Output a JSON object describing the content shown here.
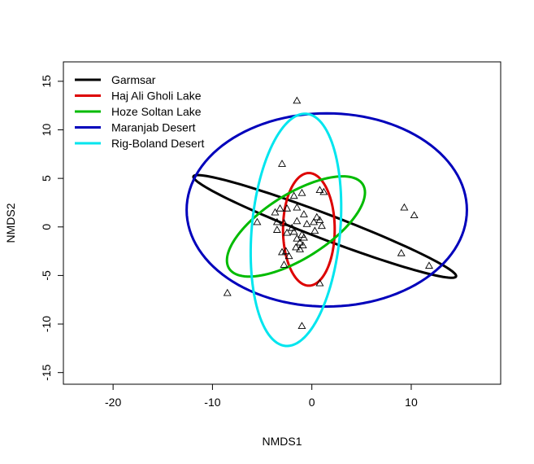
{
  "chart_data": {
    "type": "scatter",
    "xlabel": "NMDS1",
    "ylabel": "NMDS2",
    "xlim": [
      -25,
      19
    ],
    "ylim": [
      -16.2,
      17
    ],
    "x_ticks": [
      -20,
      -10,
      0,
      10
    ],
    "y_ticks": [
      -15,
      -10,
      -5,
      0,
      5,
      10,
      15
    ],
    "legend_position": "top-left",
    "point_marker": "open-triangle",
    "points": [
      [
        -1.5,
        13
      ],
      [
        -3,
        6.5
      ],
      [
        -1,
        3.5
      ],
      [
        -1.8,
        3.2
      ],
      [
        0.8,
        3.8
      ],
      [
        1.2,
        3.6
      ],
      [
        -1.5,
        2
      ],
      [
        -2.5,
        1.9
      ],
      [
        -3.2,
        1.9
      ],
      [
        -3.7,
        1.5
      ],
      [
        -0.8,
        1.3
      ],
      [
        0.5,
        1
      ],
      [
        0.8,
        0.7
      ],
      [
        0.2,
        0.5
      ],
      [
        -5.5,
        0.5
      ],
      [
        -3.5,
        0.5
      ],
      [
        -2.8,
        0.4
      ],
      [
        -1.5,
        0.6
      ],
      [
        -0.5,
        0.3
      ],
      [
        1,
        0.1
      ],
      [
        -2,
        -0.1
      ],
      [
        -3.5,
        -0.3
      ],
      [
        0.3,
        -0.4
      ],
      [
        -1.8,
        -0.5
      ],
      [
        -2.5,
        -0.6
      ],
      [
        -1,
        -0.8
      ],
      [
        -0.8,
        -1.1
      ],
      [
        -1.5,
        -1.2
      ],
      [
        -1.2,
        -1.6
      ],
      [
        -0.9,
        -1.9
      ],
      [
        -1.6,
        -2.1
      ],
      [
        -1.2,
        -2.3
      ],
      [
        -2.6,
        -2.5
      ],
      [
        -3,
        -2.6
      ],
      [
        -2.3,
        -3
      ],
      [
        -2.8,
        -3.9
      ],
      [
        0.8,
        -5.8
      ],
      [
        -8.5,
        -6.8
      ],
      [
        -1,
        -10.2
      ],
      [
        9.3,
        2
      ],
      [
        10.3,
        1.2
      ],
      [
        9,
        -2.7
      ],
      [
        11.8,
        -4
      ]
    ],
    "ellipses": [
      {
        "name": "Garmsar",
        "color": "#000000",
        "cx": 1.3,
        "cy": 0.05,
        "rx": 14.18,
        "ry": 1.28,
        "angle_deg": -21.3
      },
      {
        "name": "Haj Ali Gholi Lake",
        "color": "#dd0000",
        "cx": -0.3,
        "cy": -0.25,
        "rx": 2.6,
        "ry": 5.8,
        "angle_deg": 0
      },
      {
        "name": "Hoze Soltan Lake",
        "color": "#00bb00",
        "cx": -1.6,
        "cy": 0.05,
        "rx": 8.0,
        "ry": 3.3,
        "angle_deg": 33
      },
      {
        "name": "Maranjab Desert",
        "color": "#0000bb",
        "cx": 1.5,
        "cy": 1.75,
        "rx": 14.1,
        "ry": 9.95,
        "angle_deg": 0
      },
      {
        "name": "Rig-Boland Desert",
        "color": "#00e5ee",
        "cx": -1.6,
        "cy": -0.3,
        "rx": 4.45,
        "ry": 12.0,
        "angle_deg": -5
      }
    ],
    "legend": [
      "Garmsar",
      "Haj Ali Gholi Lake",
      "Hoze Soltan Lake",
      "Maranjab Desert",
      "Rig-Boland Desert"
    ]
  }
}
